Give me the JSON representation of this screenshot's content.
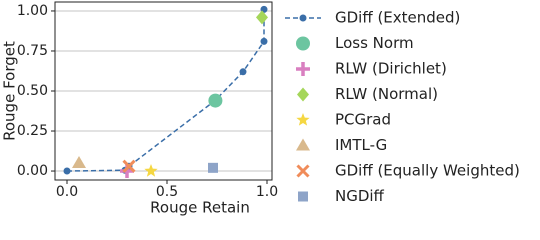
{
  "chart_data": {
    "type": "scatter",
    "xlabel": "Rouge Retain",
    "ylabel": "Rouge Forget",
    "xlim": [
      -0.06,
      1.025
    ],
    "ylim": [
      -0.056,
      1.056
    ],
    "xticks": [
      {
        "value": 0,
        "label": "0.0"
      },
      {
        "value": 0.5,
        "label": "0.5"
      },
      {
        "value": 1,
        "label": "1.0"
      }
    ],
    "yticks": [
      {
        "value": 0,
        "label": "0.00"
      },
      {
        "value": 0.25,
        "label": "0.25"
      },
      {
        "value": 0.5,
        "label": "0.50"
      },
      {
        "value": 0.75,
        "label": "0.75"
      },
      {
        "value": 1,
        "label": "1.00"
      }
    ],
    "grid": true,
    "legend": "right",
    "series": [
      {
        "name": "GDiff (Extended)",
        "color": "#3a6ea8",
        "marker": "dot",
        "line": "dashed",
        "x": [
          0,
          0.29,
          0.31,
          0.74,
          0.88,
          0.985,
          0.985
        ],
        "y": [
          0,
          0.005,
          0.03,
          0.44,
          0.62,
          0.81,
          1.01
        ]
      },
      {
        "name": "Loss Norm",
        "color": "#6cc5a0",
        "marker": "circle",
        "x": [
          0.742
        ],
        "y": [
          0.44
        ]
      },
      {
        "name": "RLW (Dirichlet)",
        "color": "#d97fc0",
        "marker": "plus",
        "x": [
          0.3
        ],
        "y": [
          0.0
        ]
      },
      {
        "name": "RLW (Normal)",
        "color": "#a5d65a",
        "marker": "diamond",
        "x": [
          0.975
        ],
        "y": [
          0.96
        ]
      },
      {
        "name": "PCGrad",
        "color": "#f5d742",
        "marker": "star",
        "x": [
          0.42
        ],
        "y": [
          0.0
        ]
      },
      {
        "name": "IMTL-G",
        "color": "#d9b98c",
        "marker": "triangle",
        "x": [
          0.06
        ],
        "y": [
          0.05
        ]
      },
      {
        "name": "GDiff (Equally Weighted)",
        "color": "#f08c5a",
        "marker": "x",
        "x": [
          0.31
        ],
        "y": [
          0.03
        ]
      },
      {
        "name": "NGDiff",
        "color": "#8ea4c8",
        "marker": "square",
        "x": [
          0.73
        ],
        "y": [
          0.02
        ]
      }
    ]
  }
}
